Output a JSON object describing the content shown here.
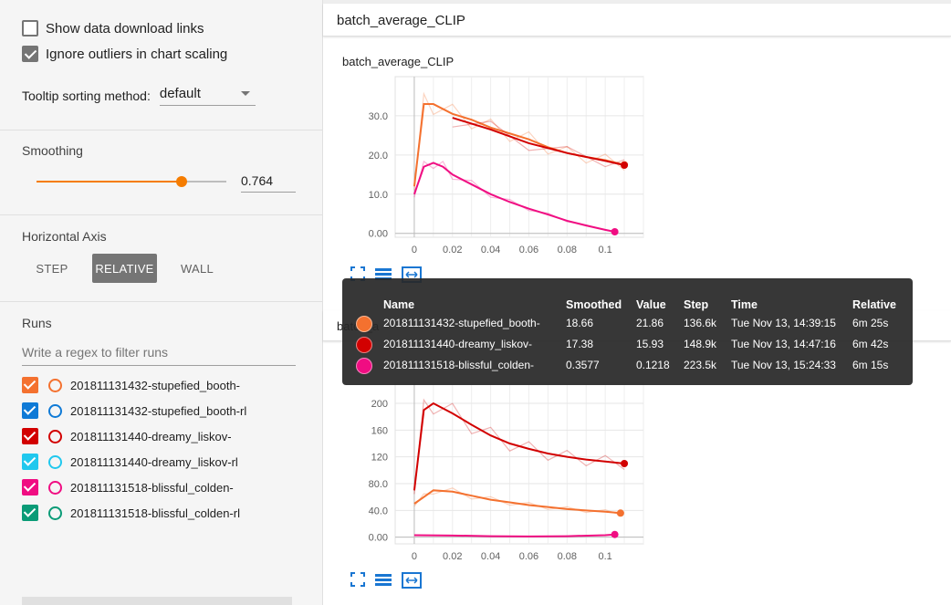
{
  "sidebar": {
    "show_download_label": "Show data download links",
    "ignore_outliers_label": "Ignore outliers in chart scaling",
    "tooltip_sort_label": "Tooltip sorting method:",
    "tooltip_sort_value": "default",
    "smoothing_label": "Smoothing",
    "smoothing_value": "0.764",
    "smoothing_fraction": 0.764,
    "haxis_label": "Horizontal Axis",
    "haxis_options": [
      "STEP",
      "RELATIVE",
      "WALL"
    ],
    "haxis_selected": "RELATIVE",
    "runs_label": "Runs",
    "filter_placeholder": "Write a regex to filter runs",
    "runs": [
      {
        "name": "201811131432-stupefied_booth-",
        "color": "#f4712f",
        "checked": true
      },
      {
        "name": "201811131432-stupefied_booth-rl",
        "color": "#0f7ad6",
        "checked": true
      },
      {
        "name": "201811131440-dreamy_liskov-",
        "color": "#d20000",
        "checked": true
      },
      {
        "name": "201811131440-dreamy_liskov-rl",
        "color": "#20c8ee",
        "checked": true
      },
      {
        "name": "201811131518-blissful_colden-",
        "color": "#f00d82",
        "checked": true
      },
      {
        "name": "201811131518-blissful_colden-rl",
        "color": "#0a9b77",
        "checked": true
      }
    ]
  },
  "main": {
    "group_title": "batch_average_CLIP",
    "chart1_title": "batch_average_CLIP",
    "card2_title_visible": "batch_a"
  },
  "chart_data": [
    {
      "type": "line",
      "title": "batch_average_CLIP",
      "x_ticks": [
        "0",
        "0.02",
        "0.04",
        "0.06",
        "0.08",
        "0.1"
      ],
      "y_ticks": [
        "0.00",
        "10.0",
        "20.0",
        "30.0"
      ],
      "xlim": [
        -0.01,
        0.12
      ],
      "ylim": [
        -1,
        40
      ],
      "series": [
        {
          "color": "#f4712f",
          "x": [
            0,
            0.005,
            0.01,
            0.02,
            0.03,
            0.04,
            0.05,
            0.06,
            0.07,
            0.08,
            0.09,
            0.1,
            0.11
          ],
          "y": [
            12,
            33,
            33,
            30.5,
            29,
            27,
            25.5,
            24,
            22,
            20.5,
            19.5,
            18.7,
            17.5
          ]
        },
        {
          "color": "#d20000",
          "x": [
            0.02,
            0.04,
            0.06,
            0.08,
            0.1,
            0.11
          ],
          "y": [
            29.5,
            26.5,
            23,
            20.5,
            18.5,
            17.4
          ]
        },
        {
          "color": "#f00d82",
          "x": [
            0,
            0.005,
            0.01,
            0.015,
            0.02,
            0.03,
            0.04,
            0.05,
            0.06,
            0.07,
            0.08,
            0.09,
            0.1,
            0.105
          ],
          "y": [
            10,
            17,
            18,
            17,
            15,
            12.5,
            10,
            8,
            6.3,
            4.8,
            3.2,
            2,
            0.9,
            0.4
          ]
        }
      ]
    },
    {
      "type": "line",
      "x_ticks": [
        "0",
        "0.02",
        "0.04",
        "0.06",
        "0.08",
        "0.1"
      ],
      "y_ticks": [
        "0.00",
        "40.0",
        "80.0",
        "120",
        "160",
        "200"
      ],
      "xlim": [
        -0.01,
        0.12
      ],
      "ylim": [
        -10,
        230
      ],
      "series": [
        {
          "color": "#d20000",
          "x": [
            0,
            0.005,
            0.01,
            0.02,
            0.03,
            0.04,
            0.05,
            0.06,
            0.07,
            0.08,
            0.09,
            0.1,
            0.11
          ],
          "y": [
            70,
            190,
            200,
            185,
            168,
            152,
            140,
            132,
            125,
            120,
            116,
            113,
            110
          ]
        },
        {
          "color": "#f4712f",
          "x": [
            0,
            0.005,
            0.01,
            0.02,
            0.03,
            0.04,
            0.05,
            0.06,
            0.07,
            0.08,
            0.09,
            0.1,
            0.108
          ],
          "y": [
            50,
            60,
            70,
            68,
            62,
            56,
            52,
            48,
            45,
            42,
            40,
            38,
            36
          ]
        },
        {
          "color": "#f00d82",
          "x": [
            0,
            0.02,
            0.04,
            0.06,
            0.08,
            0.1,
            0.105
          ],
          "y": [
            3,
            2.5,
            1.5,
            1,
            1.5,
            3,
            4
          ]
        }
      ]
    }
  ],
  "tooltip": {
    "headers": [
      "Name",
      "Smoothed",
      "Value",
      "Step",
      "Time",
      "Relative"
    ],
    "rows": [
      {
        "color": "#f4712f",
        "name": "201811131432-stupefied_booth-",
        "smoothed": "18.66",
        "value": "21.86",
        "step": "136.6k",
        "time": "Tue Nov 13, 14:39:15",
        "relative": "6m 25s"
      },
      {
        "color": "#d20000",
        "name": "201811131440-dreamy_liskov-",
        "smoothed": "17.38",
        "value": "15.93",
        "step": "148.9k",
        "time": "Tue Nov 13, 14:47:16",
        "relative": "6m 42s"
      },
      {
        "color": "#f00d82",
        "name": "201811131518-blissful_colden-",
        "smoothed": "0.3577",
        "value": "0.1218",
        "step": "223.5k",
        "time": "Tue Nov 13, 15:24:33",
        "relative": "6m 15s"
      }
    ]
  }
}
